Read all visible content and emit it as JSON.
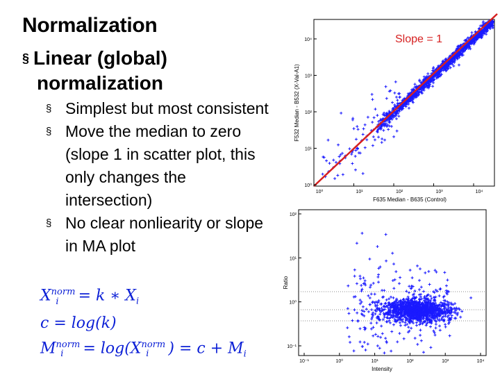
{
  "slide": {
    "title": "Normalization",
    "bullet_marker": "§",
    "main_bullet_line1": "Linear (global)",
    "main_bullet_line2": "normalization",
    "sub_bullets": [
      {
        "lines": [
          "Simplest but most consistent"
        ]
      },
      {
        "lines": [
          "Move the median to zero",
          "(slope 1 in scatter plot, this",
          "only changes the",
          "intersection)"
        ]
      },
      {
        "lines": [
          "No clear nonliearity or slope",
          "in MA plot"
        ]
      }
    ],
    "formulas": [
      {
        "lhs": "X",
        "lhs_sup": "norm",
        "lhs_sub": "i",
        "rhs": "= k ∗ X",
        "rhs_sub": "i"
      },
      {
        "text": "c = log(k)"
      },
      {
        "lhs": "M",
        "lhs_sup": "norm",
        "lhs_sub": "i",
        "rhs": "= log(X",
        "rhs_sup": "norm",
        "rhs_sub": "i",
        "rhs_end": ") = c + M",
        "end_sub": "i"
      }
    ]
  },
  "chart_data": [
    {
      "type": "scatter",
      "title": "",
      "xlabel": "F635 Median - B635 (Control)",
      "ylabel": "F532 Median - B532 (X-Val-A1)",
      "xscale": "log",
      "yscale": "log",
      "x_ticks": [
        "10⁰",
        "10¹",
        "10²",
        "10³",
        "10⁴"
      ],
      "y_ticks": [
        "10⁰",
        "10¹",
        "10²",
        "10³",
        "10⁴"
      ],
      "annotation": "Slope = 1",
      "fit_line": {
        "slope": 1,
        "color": "#d62020"
      },
      "marker_color": "#1a1aff"
    },
    {
      "type": "scatter",
      "title": "",
      "xlabel": "Intensity",
      "ylabel": "Ratio",
      "xscale": "log",
      "yscale": "log",
      "x_ticks": [
        "10⁻¹",
        "10⁰",
        "10¹",
        "10²",
        "10³",
        "10⁴"
      ],
      "y_ticks": [
        "10⁻¹",
        "10⁰",
        "10¹",
        "10²"
      ],
      "marker_color": "#1a1aff"
    }
  ]
}
